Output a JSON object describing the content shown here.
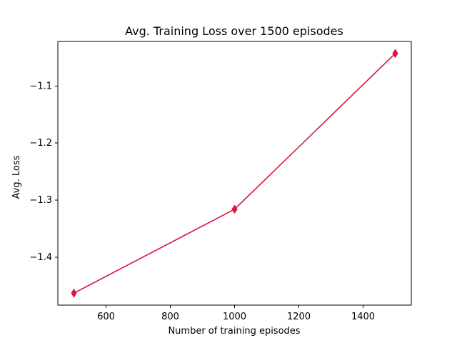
{
  "chart_data": {
    "type": "line",
    "title": "Avg. Training Loss over 1500 episodes",
    "xlabel": "Number of training episodes",
    "ylabel": "Avg. Loss",
    "x": [
      500,
      1000,
      1500
    ],
    "series": [
      {
        "values": [
          -1.463,
          -1.316,
          -1.043
        ],
        "color": "#dc143c",
        "marker": "thin_diamond"
      }
    ],
    "xlim": [
      450,
      1550
    ],
    "ylim": [
      -1.484,
      -1.022
    ],
    "xticks": [
      600,
      800,
      1000,
      1200,
      1400
    ],
    "xtick_labels": [
      "600",
      "800",
      "1000",
      "1200",
      "1400"
    ],
    "yticks": [
      -1.4,
      -1.3,
      -1.2,
      -1.1
    ],
    "ytick_labels": [
      "−1.4",
      "−1.3",
      "−1.2",
      "−1.1"
    ],
    "grid": false
  }
}
